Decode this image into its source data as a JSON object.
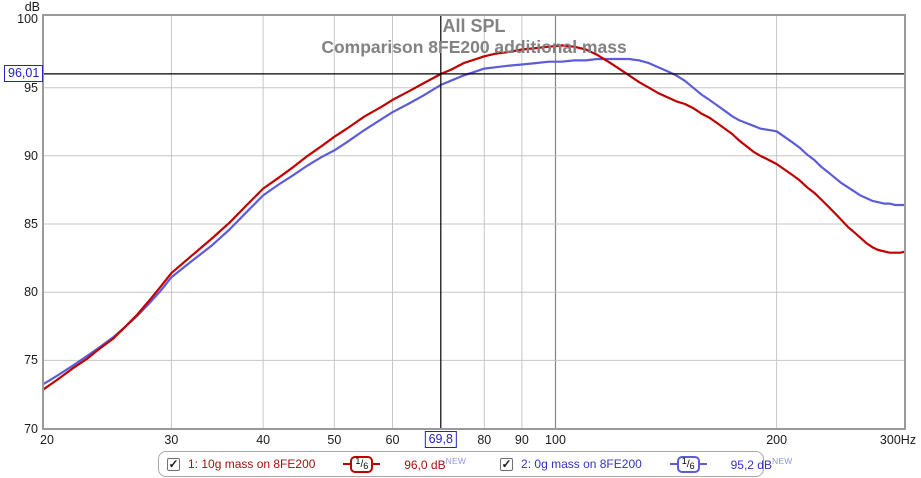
{
  "chart": {
    "y_axis": {
      "unit": "dB",
      "ticks": [
        100,
        95,
        90,
        85,
        80,
        75,
        70
      ]
    },
    "x_axis": {
      "unit": "Hz",
      "ticks": [
        {
          "f": 20,
          "label": "20"
        },
        {
          "f": 30,
          "label": "30"
        },
        {
          "f": 40,
          "label": "40"
        },
        {
          "f": 50,
          "label": "50"
        },
        {
          "f": 60,
          "label": "60"
        },
        {
          "f": 80,
          "label": "80"
        },
        {
          "f": 90,
          "label": "90"
        },
        {
          "f": 100,
          "label": "100"
        },
        {
          "f": 200,
          "label": "200"
        },
        {
          "f": 300,
          "label": "300Hz"
        }
      ]
    },
    "grid": {
      "x_minor": [
        30,
        40,
        50,
        60,
        80,
        90,
        200
      ],
      "x_major": [
        100
      ],
      "y_lines": [
        95,
        90,
        85,
        80,
        75
      ]
    },
    "cursor": {
      "freq_label": "69,8",
      "freq_hz": 69.8,
      "spl_label": "96,01",
      "spl_db": 96.01
    }
  },
  "chart_data": {
    "type": "line",
    "title": "All SPL",
    "subtitle": "Comparison 8FE200 additional mass",
    "xlabel": "Hz",
    "ylabel": "dB",
    "x_scale": "log",
    "xlim": [
      20,
      300
    ],
    "ylim": [
      69.9,
      100.4
    ],
    "grid": true,
    "legend_position": "bottom",
    "series": [
      {
        "name": "1: 10g mass on 8FE200",
        "color": "#c00000",
        "smoothing": "1/6",
        "cursor_value_db": 96.0,
        "points": [
          [
            20,
            72.8
          ],
          [
            21,
            73.6
          ],
          [
            22,
            74.4
          ],
          [
            23,
            75.1
          ],
          [
            24,
            75.9
          ],
          [
            25,
            76.6
          ],
          [
            26,
            77.5
          ],
          [
            27,
            78.4
          ],
          [
            28,
            79.4
          ],
          [
            29,
            80.4
          ],
          [
            30,
            81.4
          ],
          [
            32,
            82.7
          ],
          [
            34,
            83.9
          ],
          [
            36,
            85.1
          ],
          [
            38,
            86.4
          ],
          [
            40,
            87.6
          ],
          [
            42,
            88.4
          ],
          [
            44,
            89.2
          ],
          [
            46,
            90.0
          ],
          [
            48,
            90.7
          ],
          [
            50,
            91.4
          ],
          [
            52,
            92.0
          ],
          [
            55,
            92.9
          ],
          [
            58,
            93.6
          ],
          [
            60,
            94.1
          ],
          [
            63,
            94.7
          ],
          [
            66,
            95.3
          ],
          [
            69.8,
            96.0
          ],
          [
            72,
            96.3
          ],
          [
            75,
            96.8
          ],
          [
            78,
            97.1
          ],
          [
            80,
            97.3
          ],
          [
            83,
            97.5
          ],
          [
            86,
            97.6
          ],
          [
            90,
            97.8
          ],
          [
            94,
            97.9
          ],
          [
            98,
            98.0
          ],
          [
            102,
            98.1
          ],
          [
            106,
            98.0
          ],
          [
            110,
            97.8
          ],
          [
            114,
            97.4
          ],
          [
            118,
            96.9
          ],
          [
            122,
            96.4
          ],
          [
            126,
            95.9
          ],
          [
            130,
            95.4
          ],
          [
            134,
            95.0
          ],
          [
            138,
            94.6
          ],
          [
            142,
            94.3
          ],
          [
            146,
            94.0
          ],
          [
            150,
            93.8
          ],
          [
            154,
            93.5
          ],
          [
            158,
            93.1
          ],
          [
            162,
            92.8
          ],
          [
            166,
            92.4
          ],
          [
            170,
            92.0
          ],
          [
            174,
            91.6
          ],
          [
            178,
            91.1
          ],
          [
            182,
            90.7
          ],
          [
            186,
            90.3
          ],
          [
            190,
            90.0
          ],
          [
            195,
            89.7
          ],
          [
            200,
            89.4
          ],
          [
            205,
            89.0
          ],
          [
            210,
            88.6
          ],
          [
            215,
            88.2
          ],
          [
            220,
            87.7
          ],
          [
            225,
            87.3
          ],
          [
            230,
            86.8
          ],
          [
            235,
            86.3
          ],
          [
            240,
            85.8
          ],
          [
            245,
            85.3
          ],
          [
            250,
            84.8
          ],
          [
            255,
            84.4
          ],
          [
            260,
            84.0
          ],
          [
            265,
            83.6
          ],
          [
            270,
            83.3
          ],
          [
            275,
            83.1
          ],
          [
            280,
            83.0
          ],
          [
            285,
            82.9
          ],
          [
            290,
            82.9
          ],
          [
            295,
            82.9
          ],
          [
            300,
            83.0
          ]
        ]
      },
      {
        "name": "2: 0g mass on 8FE200",
        "color": "#5c5cd8",
        "smoothing": "1/6",
        "cursor_value_db": 95.2,
        "points": [
          [
            20,
            73.2
          ],
          [
            21,
            73.9
          ],
          [
            22,
            74.6
          ],
          [
            23,
            75.3
          ],
          [
            24,
            76.0
          ],
          [
            25,
            76.7
          ],
          [
            26,
            77.5
          ],
          [
            27,
            78.3
          ],
          [
            28,
            79.2
          ],
          [
            29,
            80.1
          ],
          [
            30,
            81.1
          ],
          [
            32,
            82.3
          ],
          [
            34,
            83.4
          ],
          [
            36,
            84.6
          ],
          [
            38,
            85.9
          ],
          [
            40,
            87.1
          ],
          [
            42,
            87.9
          ],
          [
            44,
            88.6
          ],
          [
            46,
            89.3
          ],
          [
            48,
            89.9
          ],
          [
            50,
            90.4
          ],
          [
            52,
            91.0
          ],
          [
            55,
            91.9
          ],
          [
            58,
            92.7
          ],
          [
            60,
            93.2
          ],
          [
            63,
            93.8
          ],
          [
            66,
            94.4
          ],
          [
            69.8,
            95.2
          ],
          [
            72,
            95.5
          ],
          [
            75,
            95.9
          ],
          [
            78,
            96.2
          ],
          [
            80,
            96.4
          ],
          [
            83,
            96.5
          ],
          [
            86,
            96.6
          ],
          [
            90,
            96.7
          ],
          [
            94,
            96.8
          ],
          [
            98,
            96.9
          ],
          [
            102,
            96.9
          ],
          [
            106,
            97.0
          ],
          [
            110,
            97.0
          ],
          [
            114,
            97.1
          ],
          [
            118,
            97.1
          ],
          [
            122,
            97.1
          ],
          [
            126,
            97.1
          ],
          [
            130,
            97.0
          ],
          [
            134,
            96.8
          ],
          [
            138,
            96.5
          ],
          [
            142,
            96.2
          ],
          [
            146,
            95.9
          ],
          [
            150,
            95.5
          ],
          [
            154,
            95.0
          ],
          [
            158,
            94.5
          ],
          [
            162,
            94.1
          ],
          [
            166,
            93.7
          ],
          [
            170,
            93.3
          ],
          [
            174,
            92.9
          ],
          [
            178,
            92.6
          ],
          [
            182,
            92.4
          ],
          [
            186,
            92.2
          ],
          [
            190,
            92.0
          ],
          [
            195,
            91.9
          ],
          [
            200,
            91.8
          ],
          [
            205,
            91.4
          ],
          [
            210,
            91.0
          ],
          [
            215,
            90.6
          ],
          [
            220,
            90.1
          ],
          [
            225,
            89.7
          ],
          [
            230,
            89.2
          ],
          [
            235,
            88.8
          ],
          [
            240,
            88.4
          ],
          [
            245,
            88.0
          ],
          [
            250,
            87.7
          ],
          [
            255,
            87.4
          ],
          [
            260,
            87.1
          ],
          [
            265,
            86.9
          ],
          [
            270,
            86.7
          ],
          [
            275,
            86.6
          ],
          [
            280,
            86.5
          ],
          [
            285,
            86.5
          ],
          [
            290,
            86.4
          ],
          [
            295,
            86.4
          ],
          [
            300,
            86.4
          ]
        ]
      }
    ]
  },
  "legend": {
    "entries": [
      {
        "checked": true,
        "label": "1: 10g mass on 8FE200",
        "smoothing": {
          "num": "1",
          "den": "6"
        },
        "value": "96,0 dB",
        "badge": "NEW",
        "text_color": "#a31111",
        "line_color": "#c00000"
      },
      {
        "checked": true,
        "label": "2: 0g mass on 8FE200",
        "smoothing": {
          "num": "1",
          "den": "6"
        },
        "value": "95,2 dB",
        "badge": "NEW",
        "text_color": "#3434bd",
        "line_color": "#5c5cd8"
      }
    ]
  },
  "colors": {
    "red_curve": "#c00000",
    "blue_curve": "#5c5cd8",
    "red_text": "#a31111",
    "blue_text": "#3434bd",
    "new_badge": "#9595e8",
    "cursor_accent": "#2323c8",
    "grid_minor": "#c6c6c6",
    "grid_major": "#858585",
    "frame": "#9a9a9a",
    "title_gray": "#828282",
    "crosshair": "#000000",
    "background": "#ffffff"
  }
}
